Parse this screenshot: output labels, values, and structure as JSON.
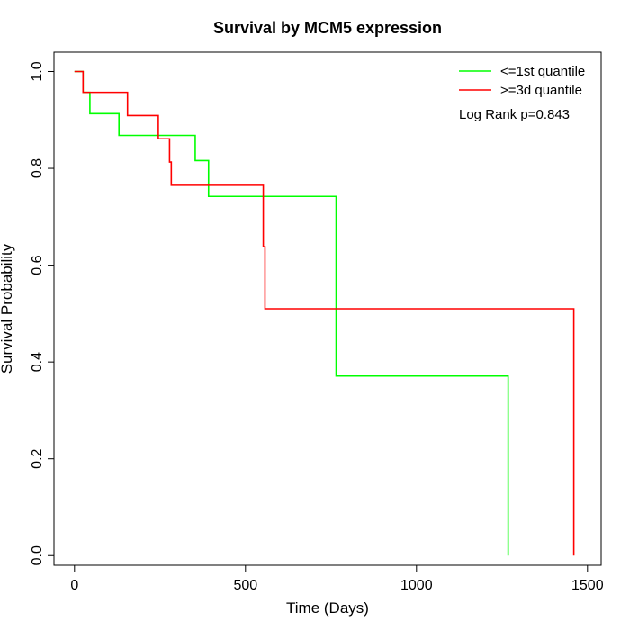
{
  "chart_data": {
    "type": "line",
    "title": "Survival by MCM5 expression",
    "xlabel": "Time (Days)",
    "ylabel": "Survival Probability",
    "xlim": [
      -60,
      1540
    ],
    "ylim": [
      -0.02,
      1.04
    ],
    "x_ticks": [
      0,
      500,
      1000,
      1500
    ],
    "y_ticks": [
      0.0,
      0.2,
      0.4,
      0.6,
      0.8,
      1.0
    ],
    "x_tick_labels": [
      "0",
      "500",
      "1000",
      "1500"
    ],
    "y_tick_labels": [
      "0.0",
      "0.2",
      "0.4",
      "0.6",
      "0.8",
      "1.0"
    ],
    "grid": false,
    "legend_position": "top-right",
    "annotation": "Log Rank p=0.843",
    "series": [
      {
        "name": "<=1st quantile",
        "color": "#00ff00",
        "x": [
          0,
          25,
          25,
          45,
          45,
          130,
          130,
          353,
          353,
          392,
          392,
          765,
          765,
          1268,
          1268
        ],
        "y": [
          1.0,
          1.0,
          0.957,
          0.957,
          0.913,
          0.913,
          0.868,
          0.868,
          0.816,
          0.816,
          0.742,
          0.742,
          0.371,
          0.371,
          0.0
        ]
      },
      {
        "name": ">=3d quantile",
        "color": "#ff0000",
        "x": [
          0,
          25,
          25,
          155,
          155,
          245,
          245,
          278,
          278,
          283,
          283,
          552,
          552,
          557,
          557,
          1460,
          1460
        ],
        "y": [
          1.0,
          1.0,
          0.957,
          0.957,
          0.909,
          0.909,
          0.861,
          0.861,
          0.813,
          0.813,
          0.765,
          0.765,
          0.638,
          0.638,
          0.51,
          0.51,
          0.0
        ]
      }
    ]
  }
}
